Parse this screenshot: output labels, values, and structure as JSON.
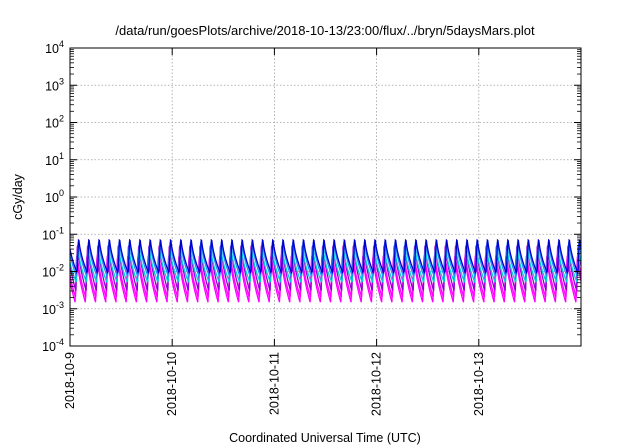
{
  "chart_data": {
    "type": "line",
    "title": "/data/run/goesPlots/archive/2018-10-13/23:00/flux/../bryn/5daysMars.plot",
    "xlabel": "Coordinated Universal Time (UTC)",
    "ylabel": "cGy/day",
    "yscale": "log",
    "ylim": [
      0.0001,
      10000
    ],
    "xlim": [
      "2018-10-09",
      "2018-10-14"
    ],
    "x_tick_labels": [
      "2018-10-9",
      "2018-10-10",
      "2018-10-11",
      "2018-10-12",
      "2018-10-13"
    ],
    "y_ticks": [
      {
        "base": "10",
        "exp": "4"
      },
      {
        "base": "10",
        "exp": "3"
      },
      {
        "base": "10",
        "exp": "2"
      },
      {
        "base": "10",
        "exp": "1"
      },
      {
        "base": "10",
        "exp": "0"
      },
      {
        "base": "10",
        "exp": "-1"
      },
      {
        "base": "10",
        "exp": "-2"
      },
      {
        "base": "10",
        "exp": "-3"
      },
      {
        "base": "10",
        "exp": "-4"
      }
    ],
    "grid": true,
    "legend": "none",
    "pattern": {
      "cycles_per_day": 10,
      "start_offset_days": 0.05,
      "cycle_rise_fraction": 0.15
    },
    "series": [
      {
        "color": "#ff00ff",
        "low": 0.0015,
        "high": 0.035
      },
      {
        "color": "#ff00ff",
        "low": 0.002,
        "high": 0.04
      },
      {
        "color": "#9400d3",
        "low": 0.003,
        "high": 0.07
      },
      {
        "color": "#00ced1",
        "low": 0.005,
        "high": 0.05
      },
      {
        "color": "#1e90ff",
        "low": 0.007,
        "high": 0.08
      },
      {
        "color": "#0000cd",
        "low": 0.009,
        "high": 0.09
      }
    ]
  }
}
